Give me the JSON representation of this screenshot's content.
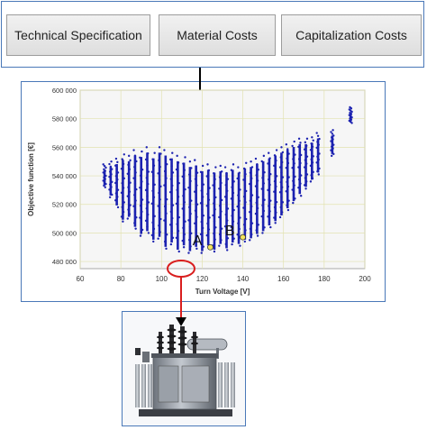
{
  "buttons": [
    {
      "label": "Technical Specification"
    },
    {
      "label": "Material Costs"
    },
    {
      "label": "Capitalization Costs"
    }
  ],
  "colors": {
    "frame": "#4a78b8",
    "points": "#1c22b0",
    "plot_bg": "#f6f6f6",
    "grid": "#e2e2b0",
    "marker": "#f3e45c",
    "highlight": "#d91e1e"
  },
  "chart_data": {
    "type": "scatter",
    "title": "",
    "xlabel": "Turn Voltage [V]",
    "ylabel": "Objective function [€]",
    "xlim": [
      60,
      200
    ],
    "ylim": [
      475000,
      600000
    ],
    "xticks": [
      60,
      80,
      100,
      120,
      140,
      160,
      180,
      200
    ],
    "yticks": [
      480000,
      500000,
      520000,
      540000,
      560000,
      580000,
      600000
    ],
    "ytick_labels": [
      "480 000",
      "500 000",
      "520 000",
      "540 000",
      "560 000",
      "580 000",
      "600 000"
    ],
    "grid": true,
    "series": [
      {
        "marker": "dot",
        "columns": [
          {
            "x": 72,
            "ymin": 532000,
            "ymax": 548000
          },
          {
            "x": 75,
            "ymin": 525000,
            "ymax": 550000
          },
          {
            "x": 78,
            "ymin": 518000,
            "ymax": 552000
          },
          {
            "x": 81,
            "ymin": 508000,
            "ymax": 555000
          },
          {
            "x": 84,
            "ymin": 510000,
            "ymax": 554000
          },
          {
            "x": 87,
            "ymin": 503000,
            "ymax": 558000
          },
          {
            "x": 90,
            "ymin": 498000,
            "ymax": 557000
          },
          {
            "x": 93,
            "ymin": 500000,
            "ymax": 560000
          },
          {
            "x": 96,
            "ymin": 494000,
            "ymax": 556000
          },
          {
            "x": 99,
            "ymin": 496000,
            "ymax": 560000
          },
          {
            "x": 102,
            "ymin": 489000,
            "ymax": 558000
          },
          {
            "x": 105,
            "ymin": 492000,
            "ymax": 556000
          },
          {
            "x": 108,
            "ymin": 487000,
            "ymax": 554000
          },
          {
            "x": 111,
            "ymin": 490000,
            "ymax": 553000
          },
          {
            "x": 114,
            "ymin": 486000,
            "ymax": 550000
          },
          {
            "x": 117,
            "ymin": 489000,
            "ymax": 551000
          },
          {
            "x": 120,
            "ymin": 486000,
            "ymax": 547000
          },
          {
            "x": 123,
            "ymin": 490000,
            "ymax": 548000
          },
          {
            "x": 126,
            "ymin": 487000,
            "ymax": 546000
          },
          {
            "x": 129,
            "ymin": 491000,
            "ymax": 547000
          },
          {
            "x": 132,
            "ymin": 488000,
            "ymax": 546000
          },
          {
            "x": 135,
            "ymin": 492000,
            "ymax": 548000
          },
          {
            "x": 138,
            "ymin": 491000,
            "ymax": 546000
          },
          {
            "x": 141,
            "ymin": 494000,
            "ymax": 549000
          },
          {
            "x": 144,
            "ymin": 495000,
            "ymax": 550000
          },
          {
            "x": 147,
            "ymin": 498000,
            "ymax": 552000
          },
          {
            "x": 150,
            "ymin": 500000,
            "ymax": 554000
          },
          {
            "x": 153,
            "ymin": 504000,
            "ymax": 556000
          },
          {
            "x": 156,
            "ymin": 507000,
            "ymax": 558000
          },
          {
            "x": 159,
            "ymin": 511000,
            "ymax": 560000
          },
          {
            "x": 162,
            "ymin": 516000,
            "ymax": 562000
          },
          {
            "x": 165,
            "ymin": 521000,
            "ymax": 564000
          },
          {
            "x": 168,
            "ymin": 526000,
            "ymax": 566000
          },
          {
            "x": 171,
            "ymin": 531000,
            "ymax": 566000
          },
          {
            "x": 174,
            "ymin": 536000,
            "ymax": 567000
          },
          {
            "x": 177,
            "ymin": 541000,
            "ymax": 570000
          },
          {
            "x": 184,
            "ymin": 554000,
            "ymax": 572000
          },
          {
            "x": 193,
            "ymin": 577000,
            "ymax": 588000
          }
        ]
      }
    ],
    "annotations": [
      {
        "label": "A",
        "x": 124,
        "y": 490000
      },
      {
        "label": "B",
        "x": 140,
        "y": 497000
      }
    ]
  },
  "photo": {
    "icon": "power-transformer-icon"
  }
}
